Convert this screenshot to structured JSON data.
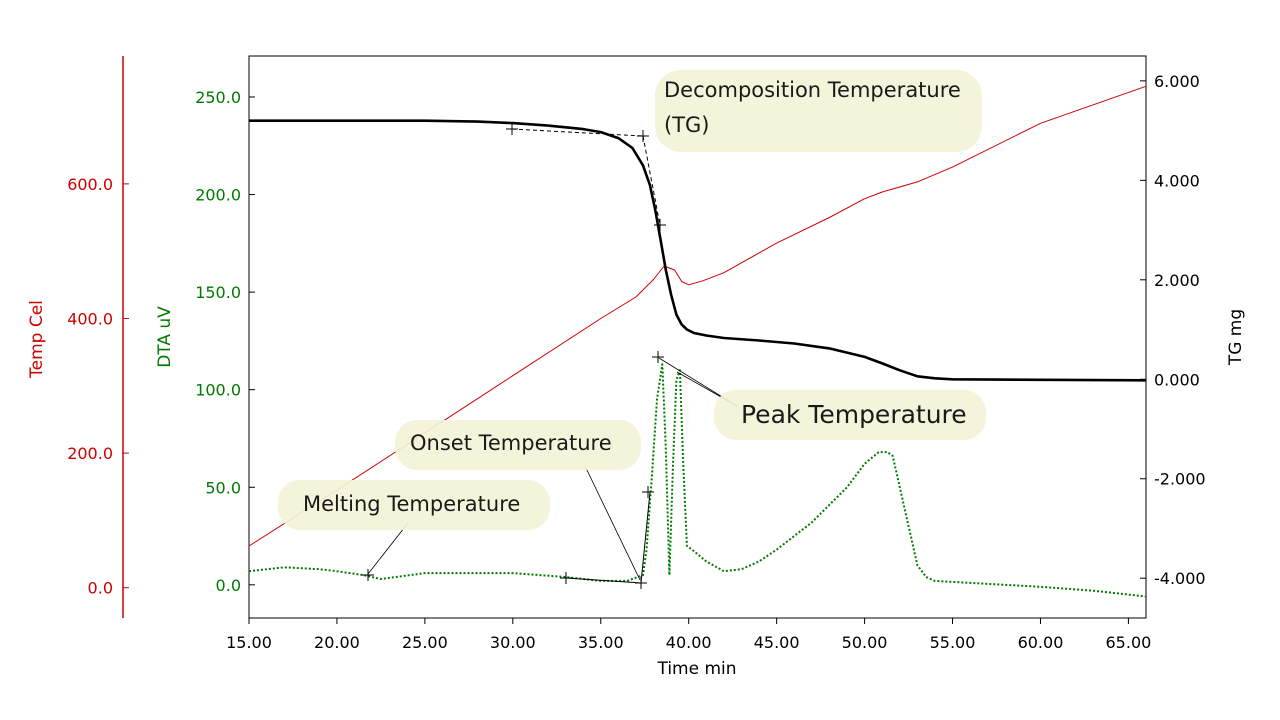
{
  "chart_data": {
    "type": "line",
    "xlabel": "Time min",
    "xlim": [
      15,
      66
    ],
    "x_ticks": [
      15,
      20,
      25,
      30,
      35,
      40,
      45,
      50,
      55,
      60,
      65
    ],
    "x_tick_labels": [
      "15.00",
      "20.00",
      "25.00",
      "30.00",
      "35.00",
      "40.00",
      "45.00",
      "50.00",
      "55.00",
      "60.00",
      "65.00"
    ],
    "axes": {
      "temp": {
        "label": "Temp Cel",
        "color": "#cc0000",
        "ylim": [
          -45,
          790
        ],
        "ticks": [
          0,
          200,
          400,
          600
        ],
        "tick_labels": [
          "0.0",
          "200.0",
          "400.0",
          "600.0"
        ]
      },
      "dta": {
        "label": "DTA uV",
        "color": "#007a00",
        "ylim": [
          -17,
          271
        ],
        "ticks": [
          0,
          50,
          100,
          150,
          200,
          250
        ],
        "tick_labels": [
          "0.0",
          "50.0",
          "100.0",
          "150.0",
          "200.0",
          "250.0"
        ]
      },
      "tg": {
        "label": "TG mg",
        "color": "#000000",
        "ylim": [
          -4.8,
          6.5
        ],
        "ticks": [
          6,
          4,
          2,
          0,
          -2,
          -4
        ],
        "tick_labels": [
          "6.000",
          "4.000",
          "2.000",
          "0.000",
          "-2.000",
          "-4.000"
        ]
      }
    },
    "series": [
      {
        "name": "Temp",
        "axis": "temp",
        "color": "#cc0000",
        "style": "solid",
        "x": [
          15,
          20,
          25,
          30,
          35,
          37,
          38,
          38.6,
          39.2,
          39.6,
          40,
          40.8,
          42,
          45,
          48,
          50,
          51,
          53,
          55,
          60,
          66
        ],
        "y": [
          62,
          145,
          230,
          315,
          400,
          432,
          458,
          478,
          472,
          455,
          450,
          456,
          468,
          512,
          550,
          578,
          588,
          603,
          625,
          690,
          745
        ]
      },
      {
        "name": "DTA",
        "axis": "dta",
        "color": "#007a00",
        "style": "dotted",
        "x": [
          15,
          17,
          19,
          20,
          21.5,
          22.5,
          25,
          30,
          33,
          35,
          36.5,
          37.4,
          37.6,
          37.9,
          38.2,
          38.5,
          38.7,
          38.9,
          39.1,
          39.3,
          39.5,
          39.7,
          39.9,
          40.2,
          41,
          42,
          43,
          44,
          45,
          47,
          49,
          50,
          50.8,
          51.3,
          51.6,
          52,
          52.5,
          53,
          53.5,
          54,
          56,
          60,
          63,
          66
        ],
        "y": [
          7,
          9,
          8,
          7,
          5,
          3,
          6,
          6,
          4,
          2,
          2,
          5,
          18,
          55,
          95,
          113,
          70,
          5,
          60,
          105,
          110,
          60,
          20,
          18,
          12,
          7,
          8,
          12,
          18,
          32,
          50,
          62,
          68,
          68,
          66,
          50,
          30,
          10,
          4,
          2,
          1,
          -1,
          -3,
          -6
        ]
      },
      {
        "name": "TG",
        "axis": "tg",
        "color": "#000000",
        "style": "solid",
        "x": [
          15,
          20,
          25,
          28,
          30,
          32,
          34,
          35,
          36,
          36.8,
          37.4,
          37.8,
          38.1,
          38.4,
          38.7,
          39,
          39.3,
          39.6,
          39.9,
          40.3,
          41,
          42,
          44,
          46,
          48,
          50,
          51,
          52,
          53,
          54,
          55,
          60,
          66
        ],
        "y": [
          5.2,
          5.2,
          5.2,
          5.18,
          5.15,
          5.1,
          5.03,
          4.97,
          4.85,
          4.65,
          4.3,
          3.9,
          3.4,
          2.8,
          2.2,
          1.7,
          1.3,
          1.1,
          1.0,
          0.93,
          0.88,
          0.83,
          0.78,
          0.72,
          0.62,
          0.45,
          0.32,
          0.18,
          0.06,
          0.02,
          0.0,
          -0.01,
          -0.02
        ]
      }
    ],
    "annotations": [
      {
        "label": "Decomposition Temperature",
        "label2": "(TG)"
      },
      {
        "label": "Peak Temperature"
      },
      {
        "label": "Onset Temperature"
      },
      {
        "label": "Melting Temperature"
      }
    ]
  }
}
